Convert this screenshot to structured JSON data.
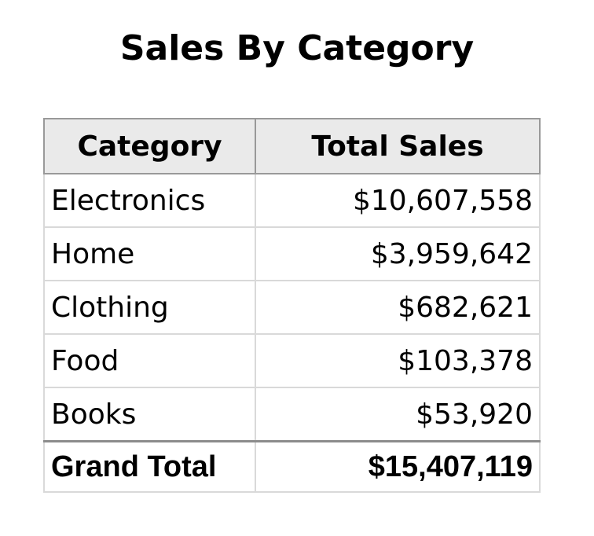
{
  "chart_data": {
    "type": "table",
    "title": "Sales By Category",
    "columns": [
      "Category",
      "Total Sales"
    ],
    "rows": [
      {
        "category": "Electronics",
        "total_sales": "$10,607,558",
        "value": 10607558
      },
      {
        "category": "Home",
        "total_sales": "$3,959,642",
        "value": 3959642
      },
      {
        "category": "Clothing",
        "total_sales": "$682,621",
        "value": 682621
      },
      {
        "category": "Food",
        "total_sales": "$103,378",
        "value": 103378
      },
      {
        "category": "Books",
        "total_sales": "$53,920",
        "value": 53920
      }
    ],
    "total": {
      "label": "Grand Total",
      "total_sales": "$15,407,119",
      "value": 15407119
    }
  }
}
